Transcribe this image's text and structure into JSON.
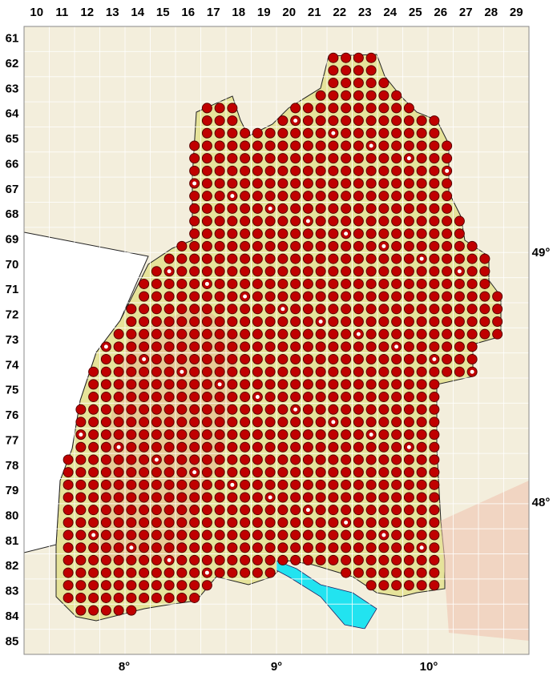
{
  "columns": [
    10,
    11,
    12,
    13,
    14,
    15,
    16,
    17,
    18,
    19,
    20,
    21,
    22,
    23,
    24,
    25,
    26,
    27,
    28,
    29
  ],
  "rows": [
    61,
    62,
    63,
    64,
    65,
    66,
    67,
    68,
    69,
    70,
    71,
    72,
    73,
    74,
    75,
    76,
    77,
    78,
    79,
    80,
    81,
    82,
    83,
    84,
    85
  ],
  "longitudes": [
    "8°",
    "9°",
    "10°"
  ],
  "latitudes": [
    "49°",
    "48°"
  ]
}
